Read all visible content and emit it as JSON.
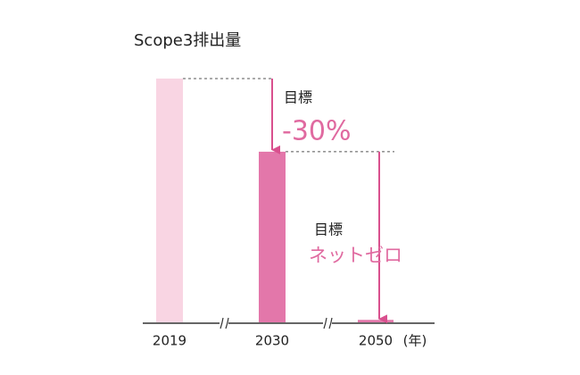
{
  "chart_data": {
    "type": "bar",
    "title": "Scope3排出量",
    "categories": [
      "2019",
      "2030",
      "2050"
    ],
    "values": [
      100,
      70,
      1
    ],
    "colors": [
      "#f9d5e3",
      "#e377aa",
      "#e377aa"
    ],
    "x_unit": "(年)",
    "annotations": [
      {
        "label": "目標",
        "value": "-30%"
      },
      {
        "label": "目標",
        "value": "ネットゼロ"
      }
    ]
  }
}
